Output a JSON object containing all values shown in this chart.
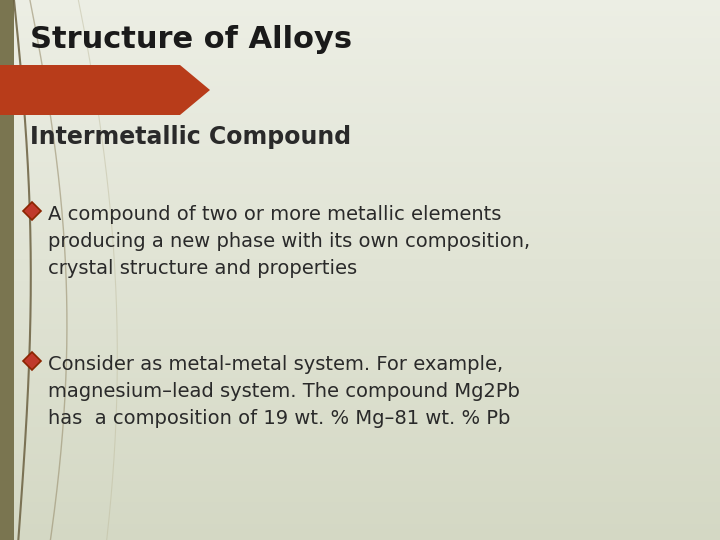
{
  "title": "Structure of Alloys",
  "subtitle": "Intermetallic Compound",
  "bullet1_line1": "A compound of two or more metallic elements",
  "bullet1_line2": "producing a new phase with its own composition,",
  "bullet1_line3": "crystal structure and properties",
  "bullet2_line1": "Consider as metal-metal system. For example,",
  "bullet2_line2": "magnesium–lead system. The compound Mg2Pb",
  "bullet2_line3": "has  a composition of 19 wt. % Mg–81 wt. % Pb",
  "bg_color": "#e8ebe0",
  "left_bar_color": "#7a7550",
  "arrow_color": "#b83c1a",
  "title_color": "#1a1a1a",
  "subtitle_color": "#2a2a2a",
  "body_color": "#2a2a2a",
  "curve_color1": "#6b6040",
  "curve_color2": "#9a9070",
  "diamond_fill": "#c0392b",
  "diamond_edge": "#8b2500",
  "title_fontsize": 22,
  "subtitle_fontsize": 17,
  "body_fontsize": 14,
  "fig_width": 7.2,
  "fig_height": 5.4
}
